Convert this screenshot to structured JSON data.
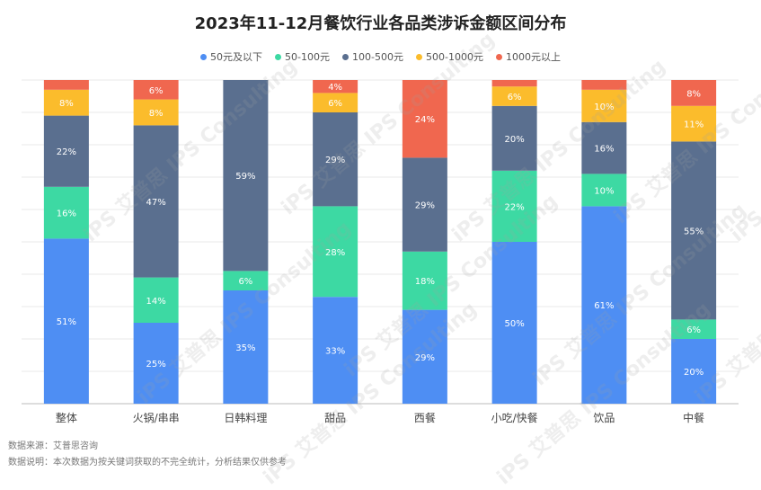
{
  "chart_data": {
    "type": "bar",
    "stacked": true,
    "title": "2023年11-12月餐饮行业各品类涉诉金额区间分布",
    "categories": [
      "整体",
      "火锅/串串",
      "日韩料理",
      "甜品",
      "西餐",
      "小吃/快餐",
      "饮品",
      "中餐"
    ],
    "series": [
      {
        "name": "50元及以下",
        "color": "#4e8ef3",
        "values": [
          51,
          25,
          35,
          33,
          29,
          50,
          61,
          20
        ]
      },
      {
        "name": "50-100元",
        "color": "#3dd9a3",
        "values": [
          16,
          14,
          6,
          28,
          18,
          22,
          10,
          6
        ]
      },
      {
        "name": "100-500元",
        "color": "#5a6f8f",
        "values": [
          22,
          47,
          59,
          29,
          29,
          20,
          16,
          55
        ]
      },
      {
        "name": "500-1000元",
        "color": "#fbbc2c",
        "values": [
          8,
          8,
          0,
          6,
          0,
          6,
          10,
          11
        ]
      },
      {
        "name": "1000元以上",
        "color": "#f0674f",
        "values": [
          3,
          6,
          0,
          4,
          24,
          2,
          3,
          8
        ]
      }
    ],
    "labels_hidden_below": 4,
    "ylim": [
      0,
      100
    ],
    "grid": true,
    "legend_position": "top"
  },
  "footer": {
    "source": "数据来源：艾普思咨询",
    "note": "数据说明：本次数据为按关键词获取的不完全统计，分析结果仅供参考"
  },
  "watermark_text": "iPS 艾普思 IPS Consulting"
}
